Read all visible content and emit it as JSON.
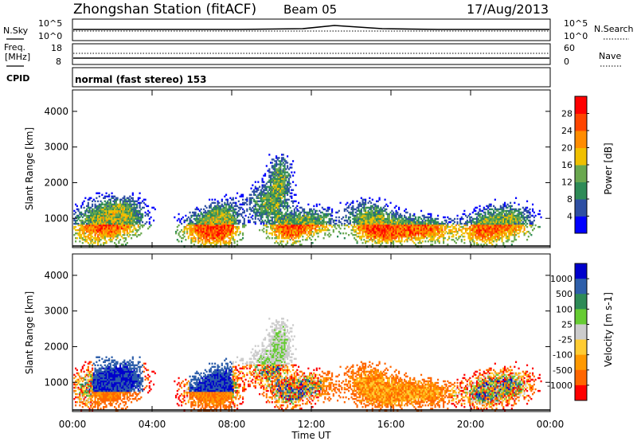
{
  "header": {
    "station": "Zhongshan Station (fitACF)",
    "beam": "Beam 05",
    "date": "17/Aug/2013"
  },
  "noise_panel": {
    "left_label": "N.Sky",
    "right_label": "N.Search",
    "top_tick": "10^5",
    "bottom_tick": "10^0"
  },
  "freq_panel": {
    "left_label_line1": "Freq.",
    "left_label_line2": "[MHz]",
    "right_label": "Nave",
    "left_ticks": [
      "18",
      "8"
    ],
    "right_ticks": [
      "60",
      "0"
    ]
  },
  "cpid_panel": {
    "label": "CPID",
    "text": "normal (fast stereo) 153"
  },
  "colors": {
    "power": [
      "#0000ff",
      "#2e4fa3",
      "#2e8b57",
      "#6aa84f",
      "#f0c000",
      "#ff8c00",
      "#ff4500",
      "#ff0000"
    ],
    "velocity": [
      "#ff0000",
      "#ff6600",
      "#ff9900",
      "#ffcc33",
      "#cccccc",
      "#66cc33",
      "#2e8b57",
      "#2e5faa",
      "#0000cc"
    ]
  },
  "chart_data": [
    {
      "type": "heatmap",
      "name": "power",
      "ylabel": "Slant Range [km]",
      "yticks": [
        1000,
        2000,
        3000,
        4000
      ],
      "ylim": [
        180,
        4600
      ],
      "xlim": [
        0,
        24
      ],
      "colorbar_label": "Power [dB]",
      "colorbar_ticks": [
        "4",
        "8",
        "12",
        "16",
        "20",
        "24",
        "28"
      ],
      "colorbar_range": [
        0,
        32
      ],
      "legend_position": "right"
    },
    {
      "type": "heatmap",
      "name": "velocity",
      "ylabel": "Slant Range [km]",
      "yticks": [
        1000,
        2000,
        3000,
        4000
      ],
      "ylim": [
        180,
        4600
      ],
      "xlim": [
        0,
        24
      ],
      "xlabel": "Time UT",
      "xticks": [
        "00:00",
        "04:00",
        "08:00",
        "12:00",
        "16:00",
        "20:00",
        "00:00"
      ],
      "colorbar_label": "Velocity [m s-1]",
      "colorbar_ticks": [
        "1000",
        "500",
        "100",
        "25",
        "-25",
        "-100",
        "-500",
        "-1000"
      ],
      "legend_position": "right"
    }
  ]
}
